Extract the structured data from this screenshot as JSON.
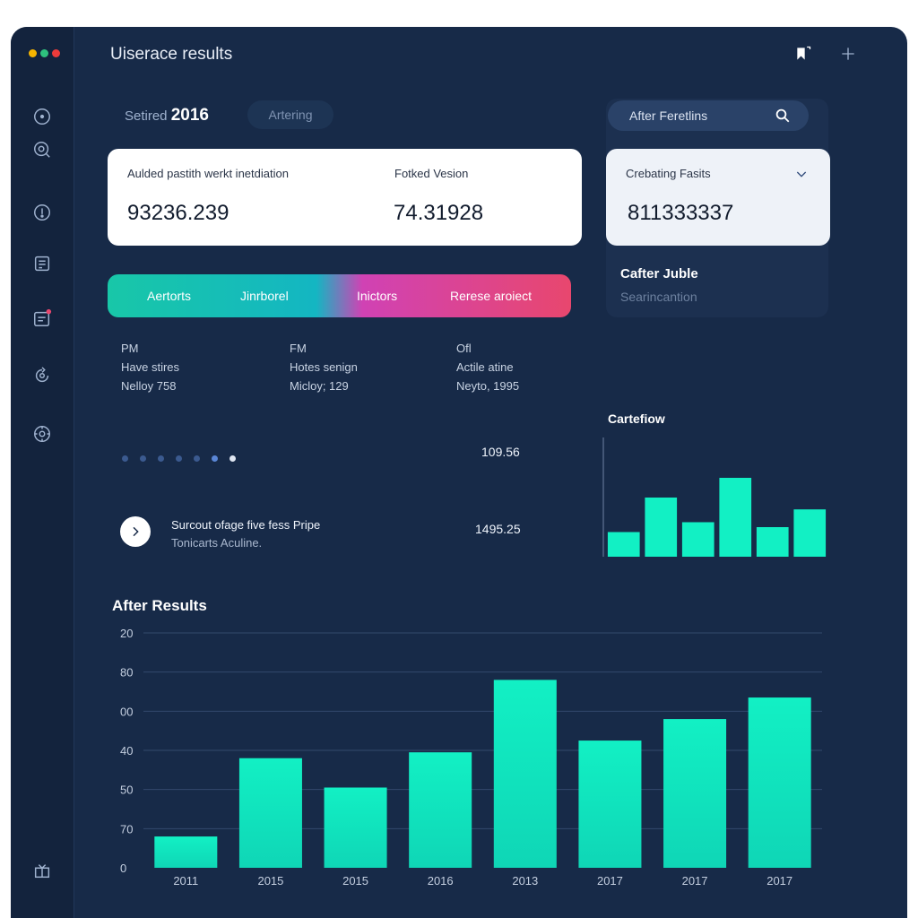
{
  "window": {
    "title": "Uiserace results",
    "traffic_colors": [
      "#f5b400",
      "#2ec27e",
      "#ec3b3b"
    ]
  },
  "sidebar": {
    "icons": [
      "circle-icon",
      "search-icon",
      "info-icon",
      "clipboard-icon",
      "calendar-icon",
      "refresh-icon",
      "settings-icon",
      "gift-icon"
    ]
  },
  "toolbar": {
    "right_icons": [
      "bookmark-icon",
      "plus-icon"
    ]
  },
  "filters": {
    "selected_prefix": "Setired",
    "selected_year": "2016",
    "pill": "Artering"
  },
  "search": {
    "placeholder": "After Feretlins"
  },
  "cards": [
    {
      "label": "Aulded pastith werkt inetdiation",
      "value": "93236.239"
    },
    {
      "label": "Fotked Vesion",
      "value": "74.31928"
    },
    {
      "label": "Crebating Fasits",
      "value": "811333337"
    }
  ],
  "side_panel": {
    "title": "Cafter Juble",
    "subtitle": "Searincantion"
  },
  "segments": [
    "Aertorts",
    "Jinrborel",
    "Inictors",
    "Rerese aroiect"
  ],
  "info_columns": [
    {
      "line1": "PM",
      "line2": "Have stires",
      "line3": "Nelloy 758"
    },
    {
      "line1": "FM",
      "line2": "Hotes senign",
      "line3": "Micloy; 129"
    },
    {
      "line1": "Ofl",
      "line2": "Actile atine",
      "line3": "Neyto, 1995"
    }
  ],
  "pager": {
    "count": 7,
    "active_index": 6
  },
  "values": {
    "top": "109.56",
    "bottom": "1495.25"
  },
  "list_row": {
    "title": "Surcout ofage five fess Pripe",
    "subtitle": "Tonicarts Aculine."
  },
  "colors": {
    "accent": "#12f0c4",
    "background": "#172a48"
  },
  "mini_chart": {
    "title": "Cartefiow",
    "chart_data": {
      "type": "bar",
      "values": [
        25,
        60,
        35,
        80,
        30,
        48
      ],
      "ylim": [
        0,
        100
      ]
    }
  },
  "chart_data": {
    "type": "bar",
    "title": "After Results",
    "categories": [
      "2011",
      "2015",
      "2015",
      "2016",
      "2013",
      "2017",
      "2017",
      "2017"
    ],
    "tick_labels": [
      "20",
      "80",
      "00",
      "40",
      "50",
      "70",
      "0"
    ],
    "values": [
      8,
      28,
      20.5,
      29.5,
      48,
      32.5,
      38,
      43.5
    ],
    "ylim": [
      0,
      60
    ],
    "grid": true
  }
}
